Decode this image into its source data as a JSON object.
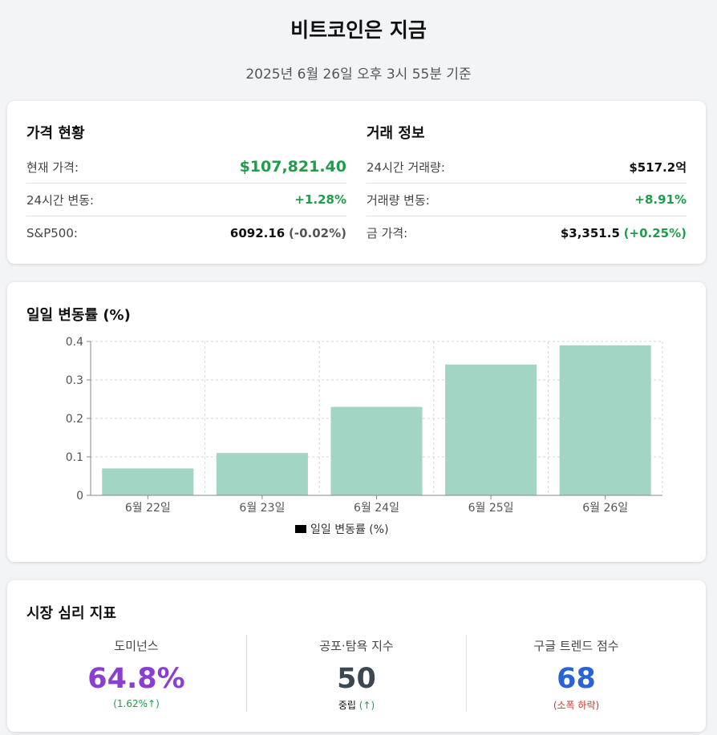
{
  "header": {
    "title": "비트코인은 지금",
    "subtitle": "2025년 6월 26일 오후 3시 55분 기준"
  },
  "price_status": {
    "heading": "가격 현황",
    "current_price_label": "현재 가격:",
    "current_price_value": "$107,821.40",
    "change_24h_label": "24시간 변동:",
    "change_24h_value": "+1.28%",
    "sp500_label": "S&P500:",
    "sp500_value": "6092.16",
    "sp500_change": "(-0.02%)"
  },
  "trade_info": {
    "heading": "거래 정보",
    "volume_label": "24시간 거래량:",
    "volume_value": "$517.2억",
    "volume_change_label": "거래량 변동:",
    "volume_change_value": "+8.91%",
    "gold_label": "금 가격:",
    "gold_value": "$3,351.5",
    "gold_change": "(+0.25%)"
  },
  "chart_section": {
    "heading": "일일 변동률 (%)"
  },
  "chart_data": {
    "type": "bar",
    "categories": [
      "6월 22일",
      "6월 23일",
      "6월 24일",
      "6월 25일",
      "6월 26일"
    ],
    "values": [
      0.07,
      0.11,
      0.23,
      0.34,
      0.39
    ],
    "series": [
      {
        "name": "일일 변동률 (%)",
        "values": [
          0.07,
          0.11,
          0.23,
          0.34,
          0.39
        ]
      }
    ],
    "ylim": [
      0,
      0.4
    ],
    "yticks": [
      "0",
      "0.1",
      "0.2",
      "0.3",
      "0.4"
    ],
    "grid": true,
    "legend": "bottom",
    "bar_color": "#a3d5c4",
    "legend_swatch_color": "#000000"
  },
  "sentiment": {
    "heading": "시장 심리 지표",
    "dominance": {
      "label": "도미넌스",
      "value": "64.8%",
      "note": "(1.62%↑)",
      "color": "#8a3fd1",
      "note_color": "#1f9d4a"
    },
    "fear_greed": {
      "label": "공포·탐욕 지수",
      "value": "50",
      "note_text": "중립",
      "note_arrow": "(↑)",
      "color": "#3d4752",
      "note_color": "#1f9d4a"
    },
    "google_trend": {
      "label": "구글 트렌드 점수",
      "value": "68",
      "note": "(소폭 하락)",
      "color": "#2a63d4",
      "note_color": "#c0392b"
    }
  }
}
